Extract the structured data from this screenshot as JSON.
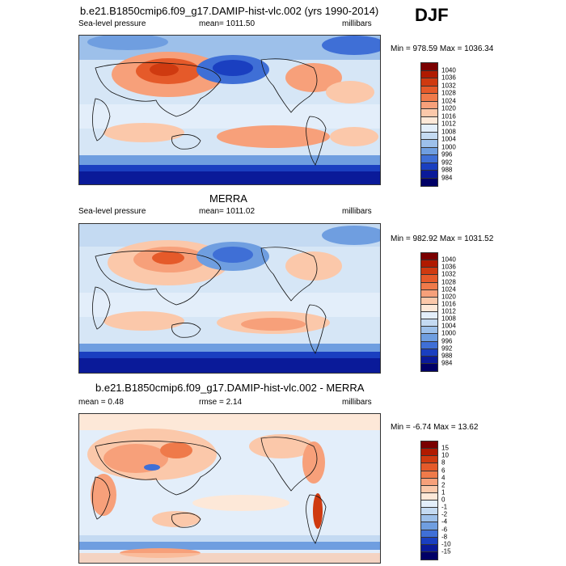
{
  "season": "DJF",
  "panels": [
    {
      "title": "b.e21.B1850cmip6.f09_g17.DAMIP-hist-vlc.002 (yrs 1990-2014)",
      "left_label": "Sea-level pressure",
      "center_label": "mean= 1011.50",
      "units": "millibars",
      "minmax": "Min = 978.59 Max = 1036.34",
      "levels": [
        "1040",
        "1036",
        "1032",
        "1028",
        "1024",
        "1020",
        "1016",
        "1012",
        "1008",
        "1004",
        "1000",
        "996",
        "992",
        "988",
        "984"
      ],
      "colors": [
        "#7a0000",
        "#b01a00",
        "#cf3a10",
        "#e55a2a",
        "#ef7a4a",
        "#f7a07a",
        "#fbc8aa",
        "#fde8d8",
        "#e3eefa",
        "#c4daf2",
        "#9dc0ea",
        "#6f9ee0",
        "#3f6fd6",
        "#1a3fc0",
        "#0a1a99",
        "#000066"
      ]
    },
    {
      "title": "MERRA",
      "left_label": "Sea-level pressure",
      "center_label": "mean= 1011.02",
      "units": "millibars",
      "minmax": "Min = 982.92 Max = 1031.52",
      "levels": [
        "1040",
        "1036",
        "1032",
        "1028",
        "1024",
        "1020",
        "1016",
        "1012",
        "1008",
        "1004",
        "1000",
        "996",
        "992",
        "988",
        "984"
      ],
      "colors": [
        "#7a0000",
        "#b01a00",
        "#cf3a10",
        "#e55a2a",
        "#ef7a4a",
        "#f7a07a",
        "#fbc8aa",
        "#fde8d8",
        "#e3eefa",
        "#c4daf2",
        "#9dc0ea",
        "#6f9ee0",
        "#3f6fd6",
        "#1a3fc0",
        "#0a1a99",
        "#000066"
      ]
    },
    {
      "title": "b.e21.B1850cmip6.f09_g17.DAMIP-hist-vlc.002 - MERRA",
      "left_label": "mean =   0.48",
      "center_label": "rmse =   2.14",
      "units": "millibars",
      "minmax": "Min =  -6.74 Max =  13.62",
      "levels": [
        "15",
        "10",
        "8",
        "6",
        "4",
        "2",
        "1",
        "0",
        "-1",
        "-2",
        "-4",
        "-6",
        "-8",
        "-10",
        "-15"
      ],
      "colors": [
        "#7a0000",
        "#b01a00",
        "#cf3a10",
        "#e55a2a",
        "#ef7a4a",
        "#f7a07a",
        "#fbc8aa",
        "#fde8d8",
        "#e3eefa",
        "#c4daf2",
        "#9dc0ea",
        "#6f9ee0",
        "#3f6fd6",
        "#1a3fc0",
        "#0a1a99",
        "#000066"
      ]
    }
  ]
}
